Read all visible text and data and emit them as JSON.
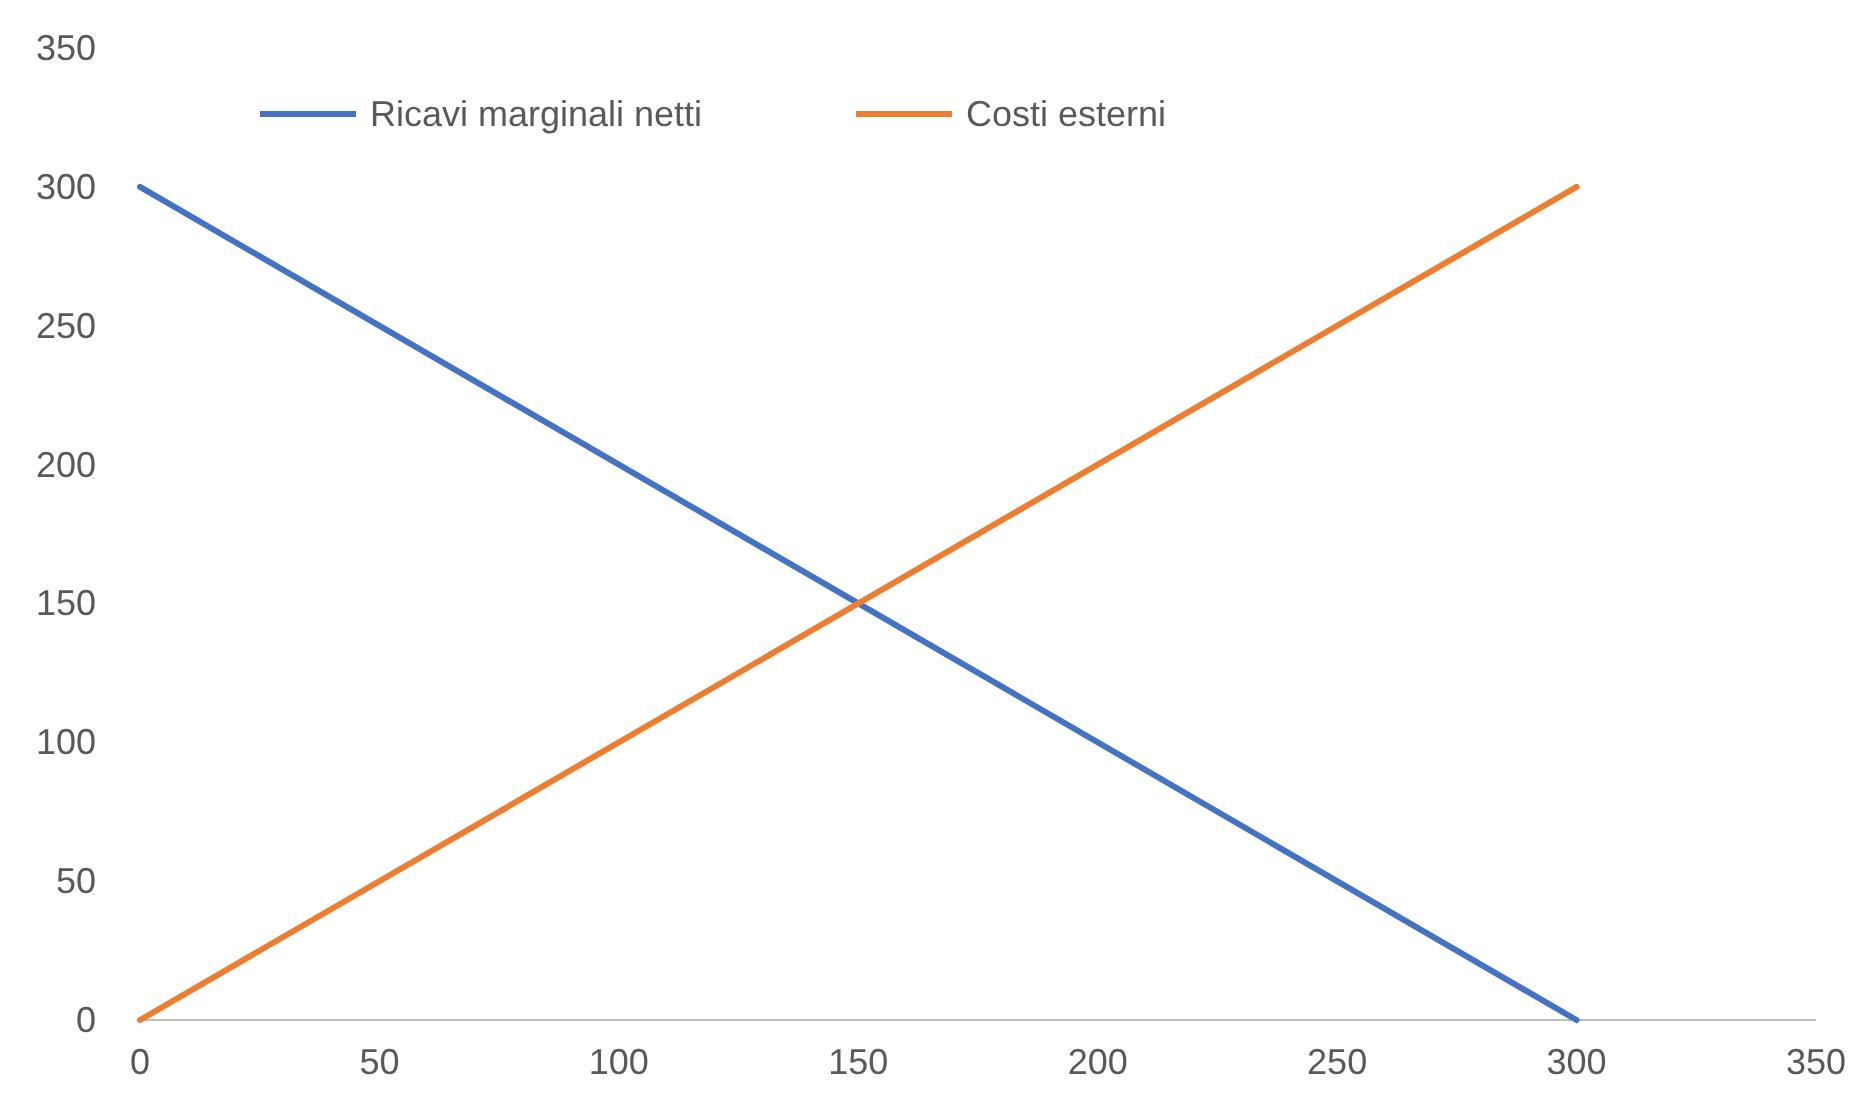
{
  "chart_data": {
    "type": "line",
    "xlim": [
      0,
      350
    ],
    "ylim": [
      0,
      350
    ],
    "xticks": [
      0,
      50,
      100,
      150,
      200,
      250,
      300,
      350
    ],
    "yticks": [
      0,
      50,
      100,
      150,
      200,
      250,
      300,
      350
    ],
    "x": [
      0,
      300
    ],
    "grid": false,
    "legend": "top",
    "marker": "none",
    "line_style": "solid",
    "series": [
      {
        "name": "Ricavi marginali netti",
        "color": "#4472c4",
        "values": [
          300,
          0
        ]
      },
      {
        "name": "Costi esterni",
        "color": "#ed7d31",
        "values": [
          0,
          300
        ]
      }
    ]
  }
}
